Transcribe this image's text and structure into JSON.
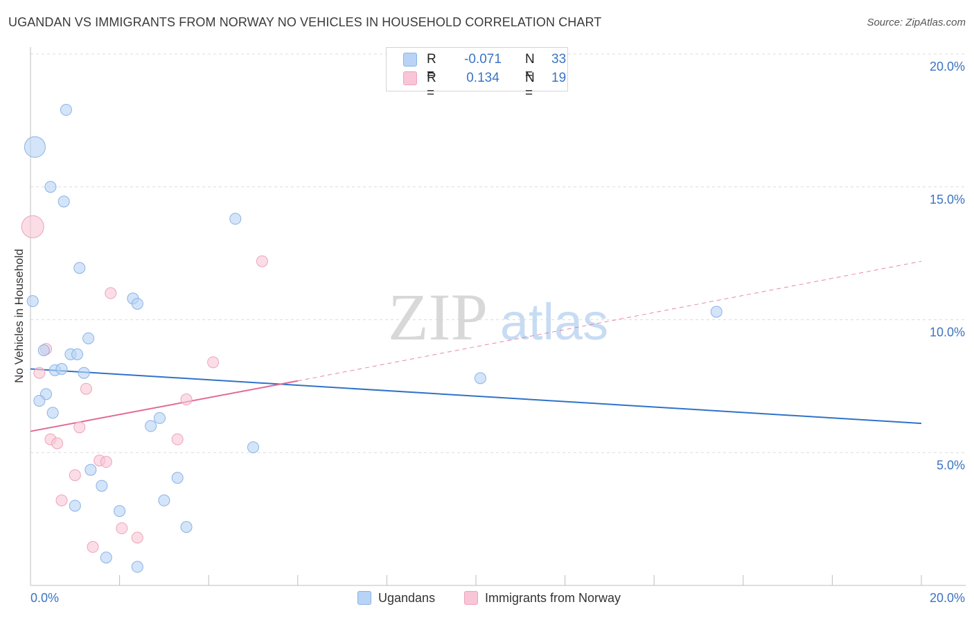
{
  "title": "UGANDAN VS IMMIGRANTS FROM NORWAY NO VEHICLES IN HOUSEHOLD CORRELATION CHART",
  "source": "Source: ZipAtlas.com",
  "watermark": {
    "zip": "ZIP",
    "atlas": "atlas"
  },
  "colors": {
    "blue_fill": "#b8d3f5",
    "blue_stroke": "#88b2e6",
    "blue_line": "#2f72c8",
    "pink_fill": "#f8c6d6",
    "pink_stroke": "#eda3bb",
    "pink_line": "#e26992",
    "axis_text": "#3a73c4",
    "grid": "#dcdcdc"
  },
  "stats_legend": {
    "rows": [
      {
        "r_label": "R =",
        "r_value": "-0.071",
        "n_label": "N =",
        "n_value": "33",
        "color": "blue"
      },
      {
        "r_label": "R =",
        "r_value": "0.134",
        "n_label": "N =",
        "n_value": "19",
        "color": "pink"
      }
    ]
  },
  "chart_data": {
    "type": "scatter",
    "title": "UGANDAN VS IMMIGRANTS FROM NORWAY NO VEHICLES IN HOUSEHOLD CORRELATION CHART",
    "xlabel": "",
    "ylabel": "No Vehicles in Household",
    "xlim": [
      0,
      20
    ],
    "ylim": [
      0,
      20
    ],
    "x_tick_labels": [
      "0.0%",
      "20.0%"
    ],
    "y_ticks": [
      5,
      10,
      15,
      20
    ],
    "y_tick_labels": [
      "5.0%",
      "10.0%",
      "15.0%",
      "20.0%"
    ],
    "grid": "horizontal dashed",
    "legend_position": "bottom",
    "series": [
      {
        "name": "Ugandans",
        "color": "blue",
        "points": [
          {
            "x": 0.1,
            "y": 16.5,
            "r": 15
          },
          {
            "x": 0.8,
            "y": 17.9
          },
          {
            "x": 0.45,
            "y": 15.0
          },
          {
            "x": 0.75,
            "y": 14.45
          },
          {
            "x": 0.05,
            "y": 10.7
          },
          {
            "x": 1.1,
            "y": 11.95
          },
          {
            "x": 2.3,
            "y": 10.8
          },
          {
            "x": 2.4,
            "y": 10.6
          },
          {
            "x": 4.6,
            "y": 13.8
          },
          {
            "x": 15.4,
            "y": 10.3
          },
          {
            "x": 1.3,
            "y": 9.3
          },
          {
            "x": 0.3,
            "y": 8.85
          },
          {
            "x": 0.9,
            "y": 8.7
          },
          {
            "x": 1.05,
            "y": 8.7
          },
          {
            "x": 0.55,
            "y": 8.1
          },
          {
            "x": 0.7,
            "y": 8.15
          },
          {
            "x": 1.2,
            "y": 8.0
          },
          {
            "x": 10.1,
            "y": 7.8
          },
          {
            "x": 0.35,
            "y": 7.2
          },
          {
            "x": 0.2,
            "y": 6.95
          },
          {
            "x": 0.5,
            "y": 6.5
          },
          {
            "x": 2.9,
            "y": 6.3
          },
          {
            "x": 2.7,
            "y": 6.0
          },
          {
            "x": 5.0,
            "y": 5.2
          },
          {
            "x": 1.35,
            "y": 4.35
          },
          {
            "x": 3.3,
            "y": 4.05
          },
          {
            "x": 1.6,
            "y": 3.75
          },
          {
            "x": 3.0,
            "y": 3.2
          },
          {
            "x": 1.0,
            "y": 3.0
          },
          {
            "x": 2.0,
            "y": 2.8
          },
          {
            "x": 3.5,
            "y": 2.2
          },
          {
            "x": 1.7,
            "y": 1.05
          },
          {
            "x": 2.4,
            "y": 0.7
          }
        ],
        "trend": {
          "x": [
            0,
            20
          ],
          "y": [
            8.15,
            6.1
          ],
          "style": "solid"
        }
      },
      {
        "name": "Immigrants from Norway",
        "color": "pink",
        "points": [
          {
            "x": 0.05,
            "y": 13.5,
            "r": 16
          },
          {
            "x": 5.2,
            "y": 12.2
          },
          {
            "x": 1.8,
            "y": 11.0
          },
          {
            "x": 0.35,
            "y": 8.9
          },
          {
            "x": 4.1,
            "y": 8.4
          },
          {
            "x": 0.2,
            "y": 8.0
          },
          {
            "x": 1.25,
            "y": 7.4
          },
          {
            "x": 3.5,
            "y": 7.0
          },
          {
            "x": 1.1,
            "y": 5.95
          },
          {
            "x": 0.45,
            "y": 5.5
          },
          {
            "x": 3.3,
            "y": 5.5
          },
          {
            "x": 0.6,
            "y": 5.35
          },
          {
            "x": 1.55,
            "y": 4.7
          },
          {
            "x": 1.7,
            "y": 4.65
          },
          {
            "x": 1.0,
            "y": 4.15
          },
          {
            "x": 0.7,
            "y": 3.2
          },
          {
            "x": 2.05,
            "y": 2.15
          },
          {
            "x": 2.4,
            "y": 1.8
          },
          {
            "x": 1.4,
            "y": 1.45
          }
        ],
        "trend": {
          "x": [
            0,
            6
          ],
          "y": [
            5.8,
            7.7
          ],
          "extended": {
            "x": [
              6,
              20
            ],
            "y": [
              7.7,
              12.2
            ]
          },
          "style": "solid then dashed"
        }
      }
    ]
  }
}
